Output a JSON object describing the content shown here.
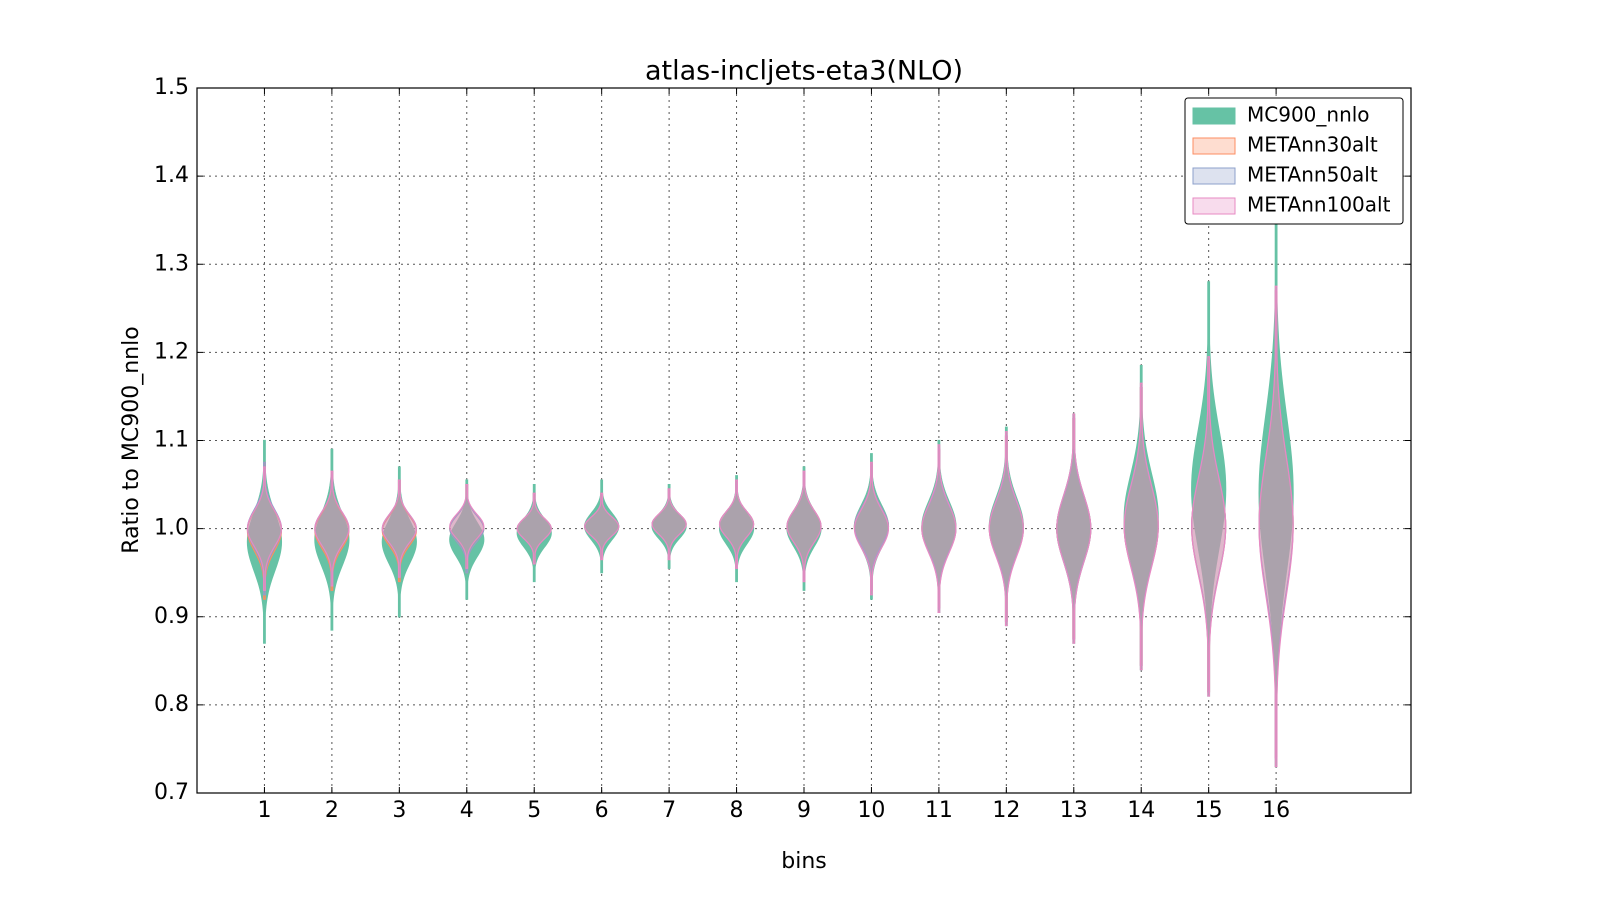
{
  "chart_data": {
    "type": "violin",
    "title": "atlas-incljets-eta3(NLO)",
    "x_label": "bins",
    "y_label": "Ratio to MC900_nnlo",
    "categories": [
      "1",
      "2",
      "3",
      "4",
      "5",
      "6",
      "7",
      "8",
      "9",
      "10",
      "11",
      "12",
      "13",
      "14",
      "15",
      "16"
    ],
    "xlim": [
      0,
      18
    ],
    "ylim": [
      0.7,
      1.5
    ],
    "yticks": [
      {
        "value": 0.7,
        "label": "0.7"
      },
      {
        "value": 0.8,
        "label": "0.8"
      },
      {
        "value": 0.9,
        "label": "0.9"
      },
      {
        "value": 1.0,
        "label": "1.0"
      },
      {
        "value": 1.1,
        "label": "1.1"
      },
      {
        "value": 1.2,
        "label": "1.2"
      },
      {
        "value": 1.3,
        "label": "1.3"
      },
      {
        "value": 1.4,
        "label": "1.4"
      },
      {
        "value": 1.5,
        "label": "1.5"
      }
    ],
    "grid": true,
    "legend": "upper right",
    "series": [
      {
        "name": "MC900_nnlo",
        "color": "#66c2a5",
        "min": [
          0.87,
          0.885,
          0.9,
          0.92,
          0.94,
          0.95,
          0.955,
          0.94,
          0.93,
          0.92,
          0.905,
          0.89,
          0.87,
          0.84,
          0.81,
          0.73
        ],
        "max": [
          1.1,
          1.09,
          1.07,
          1.055,
          1.05,
          1.055,
          1.05,
          1.06,
          1.07,
          1.085,
          1.1,
          1.115,
          1.13,
          1.185,
          1.28,
          1.35
        ]
      },
      {
        "name": "METAnn30alt",
        "color": "#fc8d62",
        "min": [
          0.92,
          0.93,
          0.94,
          0.95,
          0.96,
          0.965,
          0.965,
          0.955,
          0.94,
          0.93,
          0.91,
          0.895,
          0.875,
          0.845,
          0.815,
          0.74
        ],
        "max": [
          1.075,
          1.065,
          1.055,
          1.05,
          1.04,
          1.04,
          1.045,
          1.055,
          1.065,
          1.075,
          1.09,
          1.105,
          1.125,
          1.16,
          1.19,
          1.27
        ]
      },
      {
        "name": "METAnn50alt",
        "color": "#8da0cb",
        "min": [
          0.925,
          0.935,
          0.945,
          0.95,
          0.96,
          0.965,
          0.965,
          0.955,
          0.94,
          0.93,
          0.91,
          0.895,
          0.875,
          0.845,
          0.815,
          0.74
        ],
        "max": [
          1.075,
          1.065,
          1.055,
          1.05,
          1.04,
          1.04,
          1.045,
          1.055,
          1.065,
          1.075,
          1.09,
          1.105,
          1.125,
          1.16,
          1.19,
          1.27
        ]
      },
      {
        "name": "METAnn100alt",
        "color": "#e78ac3",
        "min": [
          0.93,
          0.935,
          0.945,
          0.955,
          0.96,
          0.965,
          0.965,
          0.955,
          0.94,
          0.925,
          0.905,
          0.89,
          0.87,
          0.84,
          0.81,
          0.73
        ],
        "max": [
          1.07,
          1.065,
          1.055,
          1.05,
          1.04,
          1.04,
          1.045,
          1.055,
          1.065,
          1.075,
          1.095,
          1.11,
          1.13,
          1.165,
          1.195,
          1.275
        ]
      }
    ]
  }
}
